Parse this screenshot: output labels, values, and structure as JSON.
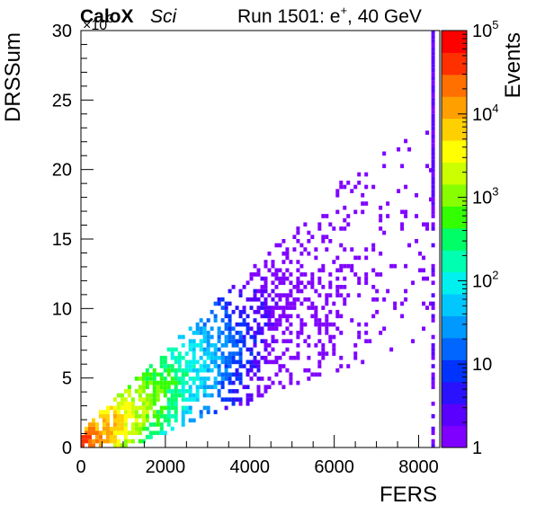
{
  "header": {
    "experiment": "CaloX",
    "tag": "Sci",
    "run_prefix": "Run 1501: e",
    "run_superscript": "+",
    "run_suffix": ", 40 GeV",
    "y_multiplier_base": "×10",
    "y_multiplier_exp": "3"
  },
  "chart_data": {
    "type": "heatmap",
    "xlabel": "FERS",
    "ylabel": "DRSSum",
    "zlabel": "Events",
    "xlim": [
      0,
      8500
    ],
    "ylim": [
      0,
      30
    ],
    "y_scale_factor": 1000,
    "z_scale": "log",
    "zlim": [
      1,
      100000
    ],
    "x_ticks": [
      0,
      2000,
      4000,
      6000,
      8000
    ],
    "x_tick_labels": [
      "0",
      "2000",
      "4000",
      "6000",
      "8000"
    ],
    "y_ticks": [
      0,
      5,
      10,
      15,
      20,
      25,
      30
    ],
    "y_tick_labels": [
      "0",
      "5",
      "10",
      "15",
      "20",
      "25",
      "30"
    ],
    "z_tick_labels": [
      {
        "value": 1,
        "label": "1"
      },
      {
        "value": 10,
        "label": "10"
      },
      {
        "value": 100,
        "base": "10",
        "exp": "2"
      },
      {
        "value": 1000,
        "base": "10",
        "exp": "3"
      },
      {
        "value": 10000,
        "base": "10",
        "exp": "4"
      },
      {
        "value": 100000,
        "base": "10",
        "exp": "5"
      }
    ],
    "regions": [
      {
        "x": [
          0,
          500
        ],
        "y": [
          0,
          1.5
        ],
        "events": 30000
      },
      {
        "x": [
          500,
          1200
        ],
        "y": [
          0.5,
          2.5
        ],
        "events": 2000
      },
      {
        "x": [
          1200,
          2000
        ],
        "y": [
          1.0,
          4.0
        ],
        "events": 150
      },
      {
        "x": [
          2000,
          3500
        ],
        "y": [
          2.0,
          8.0
        ],
        "events": 20
      },
      {
        "x": [
          3500,
          6000
        ],
        "y": [
          4.0,
          14.0
        ],
        "events": 3
      },
      {
        "x": [
          6000,
          8300
        ],
        "y": [
          8.0,
          24.0
        ],
        "events": 1
      },
      {
        "x": [
          8250,
          8400
        ],
        "y": [
          0,
          30
        ],
        "events": 2
      }
    ],
    "band": {
      "slope_per_1000_fers": 2.0,
      "width_fraction": 0.45
    },
    "palette": [
      "#7f00ff",
      "#5a00ff",
      "#2a12ff",
      "#0033ff",
      "#0066ff",
      "#0099ff",
      "#00c8ff",
      "#00f0f0",
      "#00ffb0",
      "#00ff66",
      "#33ff00",
      "#88ff00",
      "#ccff00",
      "#ffff00",
      "#ffd000",
      "#ffa000",
      "#ff7000",
      "#ff3000",
      "#ff0000"
    ]
  }
}
